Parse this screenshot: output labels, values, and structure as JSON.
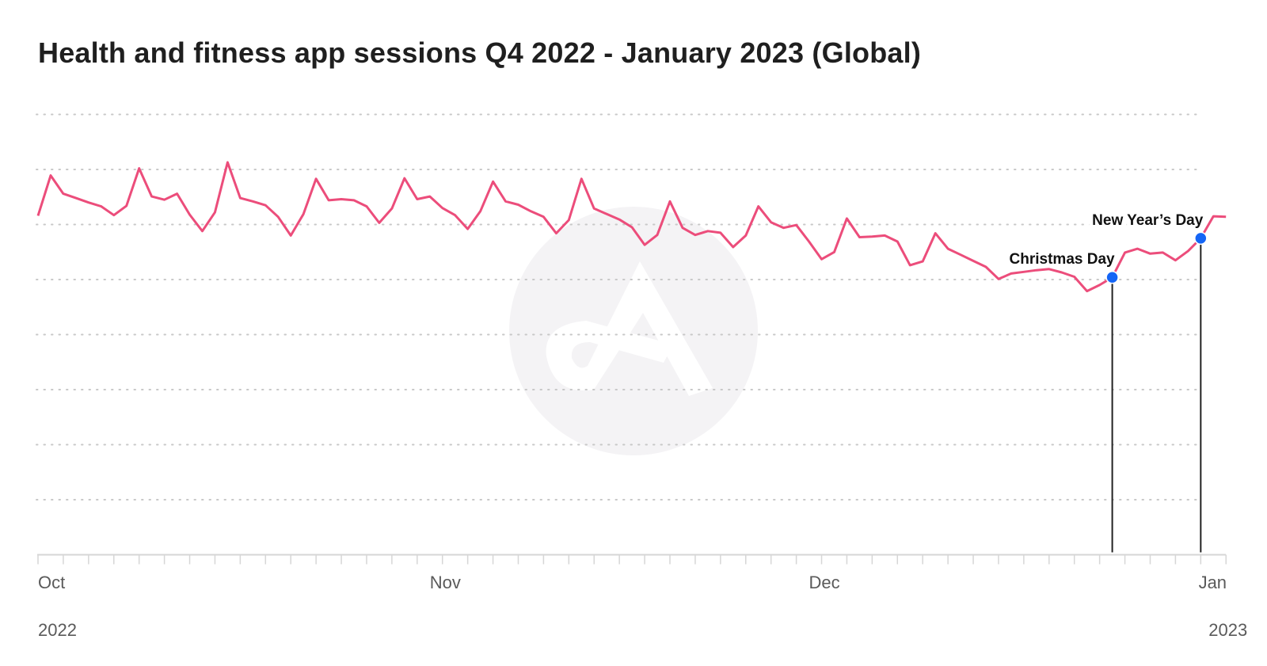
{
  "chart_data": {
    "type": "line",
    "title": "Health and fitness app sessions Q4 2022 - January 2023 (Global)",
    "xlabel": "",
    "ylabel": "",
    "x_start_date": "2022-10-01",
    "x_step": "1 day",
    "y_units": "relative (gridline units, unlabeled axis)",
    "ylim": [
      0,
      8
    ],
    "grid": true,
    "y_gridlines": [
      1,
      2,
      3,
      4,
      5,
      6,
      7,
      8
    ],
    "x_ticks": [
      {
        "label": "Oct",
        "index": 0
      },
      {
        "label": "Nov",
        "index": 31
      },
      {
        "label": "Dec",
        "index": 61
      },
      {
        "label": "Jan",
        "index": 92
      }
    ],
    "year_labels": [
      {
        "label": "2022",
        "index": 0
      },
      {
        "label": "2023",
        "index": 94
      }
    ],
    "series": [
      {
        "name": "Sessions",
        "color": "#ec4d7b",
        "values": [
          6.16,
          6.89,
          6.56,
          6.48,
          6.4,
          6.33,
          6.17,
          6.34,
          7.02,
          6.51,
          6.45,
          6.56,
          6.18,
          5.88,
          6.22,
          7.13,
          6.48,
          6.42,
          6.35,
          6.14,
          5.8,
          6.19,
          6.83,
          6.44,
          6.46,
          6.44,
          6.33,
          6.03,
          6.29,
          6.84,
          6.46,
          6.51,
          6.3,
          6.17,
          5.92,
          6.24,
          6.78,
          6.42,
          6.36,
          6.24,
          6.14,
          5.84,
          6.08,
          6.83,
          6.29,
          6.19,
          6.09,
          5.95,
          5.63,
          5.81,
          6.42,
          5.94,
          5.81,
          5.88,
          5.85,
          5.59,
          5.8,
          6.33,
          6.04,
          5.94,
          5.99,
          5.69,
          5.37,
          5.5,
          6.11,
          5.77,
          5.78,
          5.8,
          5.69,
          5.26,
          5.33,
          5.84,
          5.56,
          5.45,
          5.34,
          5.23,
          5.01,
          5.11,
          5.14,
          5.17,
          5.19,
          5.13,
          5.05,
          4.79,
          4.9,
          5.04,
          5.49,
          5.56,
          5.47,
          5.49,
          5.35,
          5.52,
          5.75,
          6.15,
          6.14
        ]
      }
    ],
    "annotations": [
      {
        "label": "Christmas Day",
        "index": 85,
        "color": "#1565f5"
      },
      {
        "label": "New Year’s Day",
        "index": 92,
        "color": "#1565f5"
      }
    ]
  }
}
